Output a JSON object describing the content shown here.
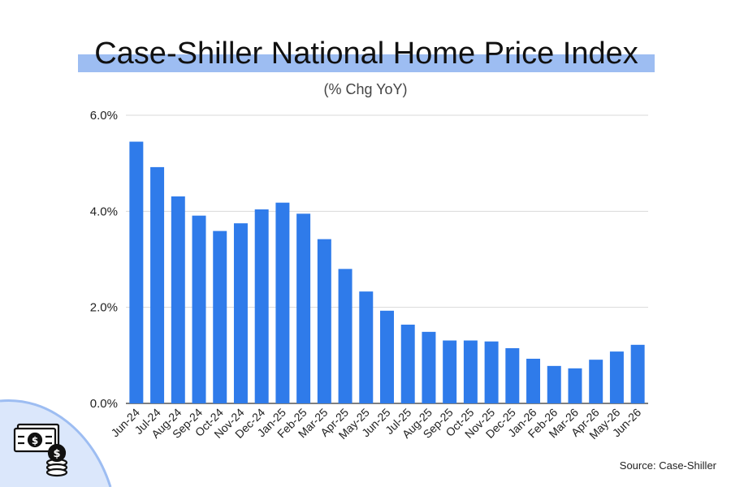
{
  "chart_data": {
    "type": "bar",
    "title": "Case-Shiller National Home Price Index",
    "subtitle": "(% Chg YoY)",
    "categories": [
      "Jun-24",
      "Jul-24",
      "Aug-24",
      "Sep-24",
      "Oct-24",
      "Nov-24",
      "Dec-24",
      "Jan-25",
      "Feb-25",
      "Mar-25",
      "Apr-25",
      "May-25",
      "Jun-25",
      "Jul-25",
      "Aug-25",
      "Sep-25",
      "Oct-25",
      "Nov-25",
      "Dec-25",
      "Jan-26",
      "Feb-26",
      "Mar-26",
      "Apr-26",
      "May-26",
      "Jun-26"
    ],
    "values": [
      5.45,
      4.92,
      4.31,
      3.91,
      3.59,
      3.75,
      4.04,
      4.18,
      3.95,
      3.42,
      2.8,
      2.33,
      1.93,
      1.64,
      1.49,
      1.31,
      1.31,
      1.29,
      1.15,
      0.93,
      0.78,
      0.73,
      0.91,
      1.08,
      1.22
    ],
    "yticks": [
      "0.0%",
      "2.0%",
      "4.0%",
      "6.0%"
    ],
    "ylim": [
      0,
      6
    ],
    "grid": true,
    "bar_color": "#2f7bea",
    "xlabel": "",
    "ylabel": ""
  },
  "source": "Source: Case-Shiller",
  "decoration": {
    "icon": "money-stack-icon",
    "accent": "#9dbdf2"
  }
}
